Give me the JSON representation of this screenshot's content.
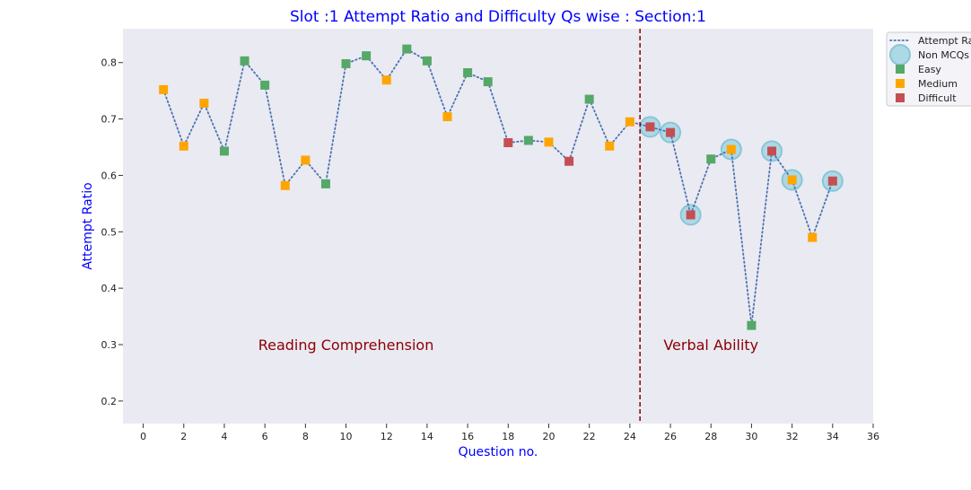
{
  "chart_data": {
    "type": "scatter",
    "title": "Slot :1 Attempt Ratio and Difficulty Qs wise :    Section:1",
    "xlabel": "Question no.",
    "ylabel": "Attempt Ratio",
    "xlim": [
      -1,
      36
    ],
    "ylim": [
      0.16,
      0.86
    ],
    "xticks": [
      0,
      2,
      4,
      6,
      8,
      10,
      12,
      14,
      16,
      18,
      20,
      22,
      24,
      26,
      28,
      30,
      32,
      34,
      36
    ],
    "yticks": [
      0.2,
      0.3,
      0.4,
      0.5,
      0.6,
      0.7,
      0.8
    ],
    "grid": false,
    "legend_position": "outside top-right",
    "section_divider_x": 24.5,
    "annotations": [
      {
        "text": "Reading Comprehension",
        "x": 10,
        "y": 0.3
      },
      {
        "text": "Verbal Ability",
        "x": 28,
        "y": 0.3
      }
    ],
    "line": {
      "name": "Attempt Rat",
      "x": [
        1,
        2,
        3,
        4,
        5,
        6,
        7,
        8,
        9,
        10,
        11,
        12,
        13,
        14,
        15,
        16,
        17,
        18,
        19,
        20,
        21,
        22,
        23,
        24,
        25,
        26,
        27,
        28,
        29,
        30,
        31,
        32,
        33,
        34
      ],
      "y": [
        0.752,
        0.652,
        0.728,
        0.643,
        0.803,
        0.76,
        0.582,
        0.627,
        0.585,
        0.798,
        0.812,
        0.769,
        0.824,
        0.803,
        0.704,
        0.782,
        0.766,
        0.658,
        0.662,
        0.659,
        0.625,
        0.735,
        0.652,
        0.695,
        0.686,
        0.676,
        0.53,
        0.629,
        0.646,
        0.334,
        0.643,
        0.592,
        0.49,
        0.59
      ]
    },
    "difficulty": [
      "Medium",
      "Medium",
      "Medium",
      "Easy",
      "Easy",
      "Easy",
      "Medium",
      "Medium",
      "Easy",
      "Easy",
      "Easy",
      "Medium",
      "Easy",
      "Easy",
      "Medium",
      "Easy",
      "Easy",
      "Difficult",
      "Easy",
      "Medium",
      "Difficult",
      "Easy",
      "Medium",
      "Medium",
      "Difficult",
      "Difficult",
      "Difficult",
      "Easy",
      "Medium",
      "Easy",
      "Difficult",
      "Medium",
      "Medium",
      "Difficult"
    ],
    "non_mcq_questions": [
      25,
      26,
      27,
      29,
      31,
      32,
      34
    ],
    "legend": [
      {
        "key": "line",
        "label": "Attempt Rat"
      },
      {
        "key": "nonmcq",
        "label": "Non MCQs"
      },
      {
        "key": "Easy",
        "label": "Easy"
      },
      {
        "key": "Medium",
        "label": "Medium"
      },
      {
        "key": "Difficult",
        "label": "Difficult"
      }
    ],
    "colors": {
      "title": "#0000ff",
      "axis_labels": "#0000ff",
      "plot_background": "#eaeaf2",
      "line": "#4c72b0",
      "Easy": "#55a868",
      "Medium": "#ffa500",
      "Difficult": "#c44e52",
      "nonmcq_fill": "#add8e6",
      "nonmcq_stroke": "#88c6d6",
      "divider": "#8b0000",
      "annotation": "#8b0000"
    }
  }
}
